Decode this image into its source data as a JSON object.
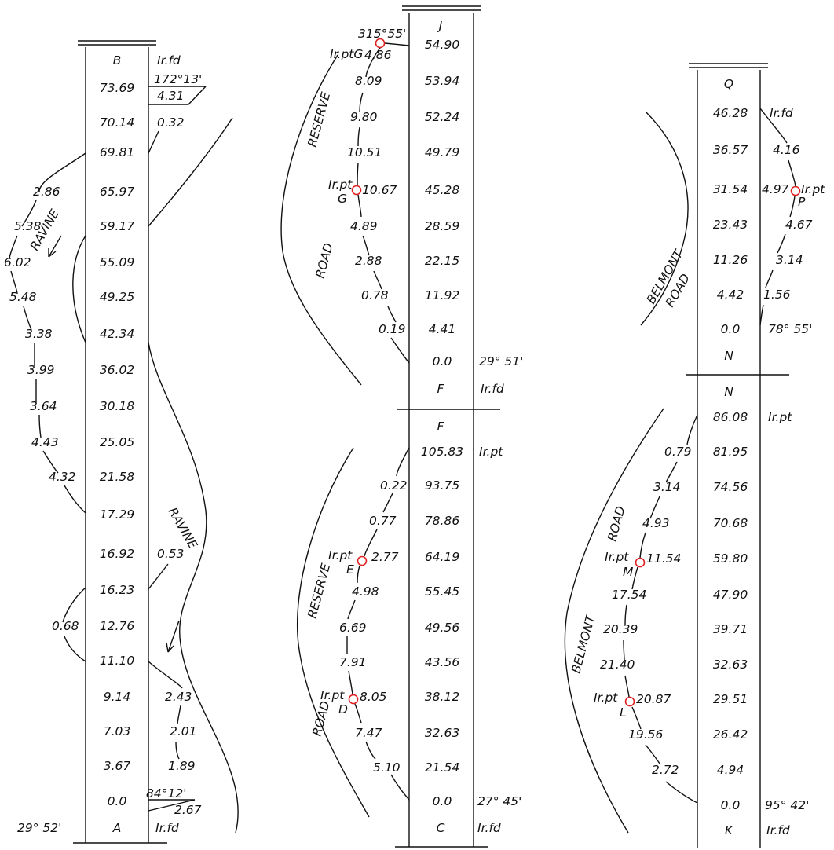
{
  "colors": {
    "ink": "#111111",
    "station_marker": "#e02020",
    "paper": "#ffffff"
  },
  "books": [
    {
      "top_label": "B",
      "bottom_label": "A",
      "top_note": "Ir.fd",
      "bottom_note": "Ir.fd",
      "bottom_bearing": "29° 52'",
      "top_bearing": "",
      "chainages": [
        "73.69",
        "70.14",
        "69.81",
        "65.97",
        "59.17",
        "55.09",
        "49.25",
        "42.34",
        "36.02",
        "30.18",
        "25.05",
        "21.58",
        "17.29",
        "16.92",
        "16.23",
        "12.76",
        "11.10",
        "9.14",
        "7.03",
        "3.67",
        "0.0"
      ],
      "offsets_left": [
        {
          "value": "2.86",
          "row": 3
        },
        {
          "value": "5.38",
          "row": 4
        },
        {
          "value": "6.02",
          "row": 5
        },
        {
          "value": "5.48",
          "row": 6
        },
        {
          "value": "3.38",
          "row": 7
        },
        {
          "value": "3.99",
          "row": 8
        },
        {
          "value": "3.64",
          "row": 9
        },
        {
          "value": "4.43",
          "row": 10
        },
        {
          "value": "4.32",
          "row": 11
        },
        {
          "value": "0.68",
          "row": 15
        }
      ],
      "offsets_right": [
        {
          "value": "0.32",
          "row": 1
        },
        {
          "value": "0.53",
          "row": 13
        },
        {
          "value": "2.43",
          "row": 17
        },
        {
          "value": "2.01",
          "row": 18
        },
        {
          "value": "1.89",
          "row": 19
        }
      ],
      "extras": {
        "tie_top_angle": "172°13'",
        "tie_top_dist": "4.31",
        "tie_bottom_angle": "84°12'",
        "tie_bottom_dist": "2.67"
      },
      "feature_labels": [
        "RAVINE",
        "RAVINE"
      ]
    },
    {
      "top_label": "J",
      "bottom_label": "F",
      "top_note": "",
      "bottom_note": "Ir.fd",
      "bottom_bearing": "29° 51'",
      "chainages": [
        "54.90",
        "53.94",
        "52.24",
        "49.79",
        "45.28",
        "28.59",
        "22.15",
        "11.92",
        "4.41",
        "0.0"
      ],
      "offsets_left": [
        {
          "value": "4.86",
          "row": 0
        },
        {
          "value": "8.09",
          "row": 1
        },
        {
          "value": "9.80",
          "row": 2
        },
        {
          "value": "10.51",
          "row": 3
        },
        {
          "value": "10.67",
          "row": 4
        },
        {
          "value": "4.89",
          "row": 5
        },
        {
          "value": "2.88",
          "row": 6
        },
        {
          "value": "0.78",
          "row": 7
        },
        {
          "value": "0.19",
          "row": 8
        }
      ],
      "extras": {
        "top_angle": "315°55'",
        "point_top": "Ir.ptG",
        "point_mid_label": "Ir.pt",
        "point_mid_letter": "G"
      },
      "feature_labels": [
        "RESERVE",
        "ROAD"
      ]
    },
    {
      "top_label": "F",
      "bottom_label": "C",
      "top_note": "Ir.pt",
      "bottom_note": "Ir.fd",
      "bottom_bearing": "27° 45'",
      "chainages": [
        "105.83",
        "93.75",
        "78.86",
        "64.19",
        "55.45",
        "49.56",
        "43.56",
        "38.12",
        "32.63",
        "21.54",
        "0.0"
      ],
      "offsets_left": [
        {
          "value": "0.22",
          "row": 1
        },
        {
          "value": "0.77",
          "row": 2
        },
        {
          "value": "2.77",
          "row": 3
        },
        {
          "value": "4.98",
          "row": 4
        },
        {
          "value": "6.69",
          "row": 5
        },
        {
          "value": "7.91",
          "row": 6
        },
        {
          "value": "8.05",
          "row": 7
        },
        {
          "value": "7.47",
          "row": 8
        },
        {
          "value": "5.10",
          "row": 9
        }
      ],
      "extras": {
        "point_e_label": "Ir.pt",
        "point_e_letter": "E",
        "point_d_label": "Ir.pt",
        "point_d_letter": "D"
      },
      "feature_labels": [
        "RESERVE",
        "ROAD"
      ]
    },
    {
      "top_label": "Q",
      "bottom_label": "N",
      "top_note": "Ir.fd",
      "bottom_note": "",
      "bottom_bearing": "78° 55'",
      "chainages": [
        "46.28",
        "36.57",
        "31.54",
        "23.43",
        "11.26",
        "4.42",
        "0.0"
      ],
      "offsets_right": [
        {
          "value": "4.16",
          "row": 1
        },
        {
          "value": "4.97",
          "row": 2
        },
        {
          "value": "4.67",
          "row": 3
        },
        {
          "value": "3.14",
          "row": 4
        },
        {
          "value": "1.56",
          "row": 5
        }
      ],
      "extras": {
        "point_p_label": "Ir.pt",
        "point_p_letter": "P"
      },
      "feature_labels": [
        "BELMONT",
        "ROAD"
      ]
    },
    {
      "top_label": "N",
      "bottom_label": "K",
      "top_note": "Ir.pt",
      "bottom_note": "Ir.fd",
      "bottom_bearing": "95° 42'",
      "chainages": [
        "86.08",
        "81.95",
        "74.56",
        "70.68",
        "59.80",
        "47.90",
        "39.71",
        "32.63",
        "29.51",
        "26.42",
        "4.94",
        "0.0"
      ],
      "offsets_left": [
        {
          "value": "0.79",
          "row": 1
        },
        {
          "value": "3.14",
          "row": 2
        },
        {
          "value": "4.93",
          "row": 3
        },
        {
          "value": "11.54",
          "row": 4
        },
        {
          "value": "17.54",
          "row": 5
        },
        {
          "value": "20.39",
          "row": 6
        },
        {
          "value": "21.40",
          "row": 7
        },
        {
          "value": "20.87",
          "row": 8
        },
        {
          "value": "19.56",
          "row": 9
        },
        {
          "value": "2.72",
          "row": 10
        }
      ],
      "extras": {
        "point_m_label": "Ir.pt",
        "point_m_letter": "M",
        "point_l_label": "Ir.pt",
        "point_l_letter": "L"
      },
      "feature_labels": [
        "BELMONT",
        "ROAD"
      ]
    }
  ]
}
